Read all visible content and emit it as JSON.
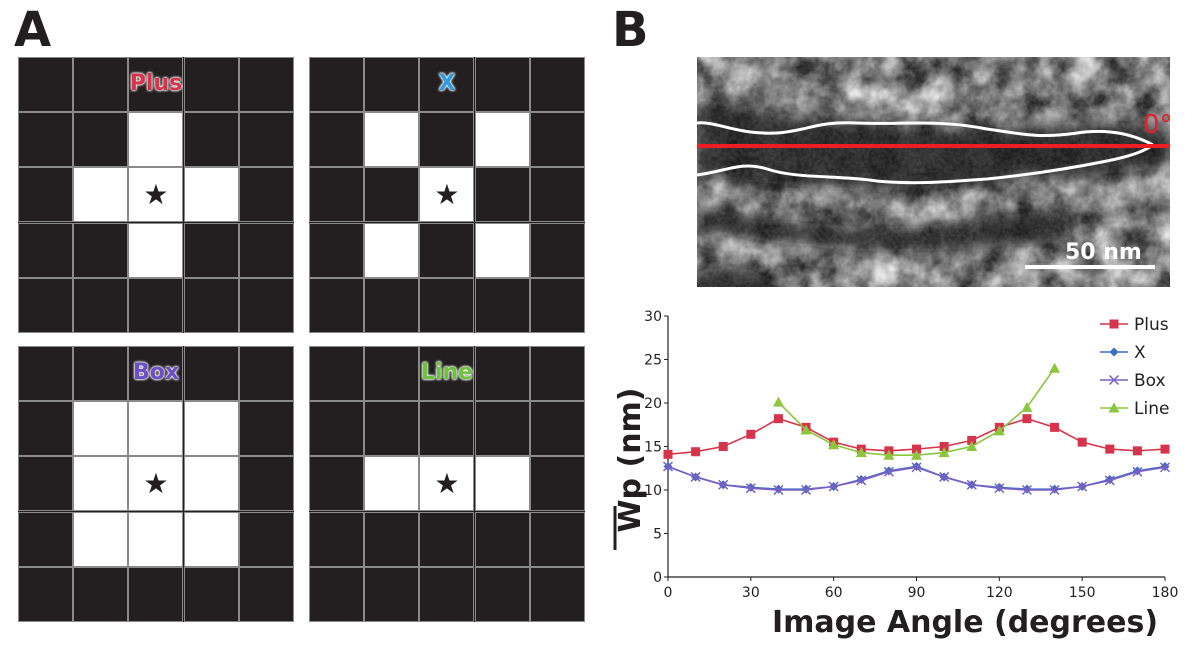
{
  "panels": {
    "a_letter": "A",
    "b_letter": "B"
  },
  "kernels": [
    {
      "label": "Plus",
      "color": "#d6344b",
      "on": [
        [
          1,
          2
        ],
        [
          2,
          1
        ],
        [
          2,
          2
        ],
        [
          2,
          3
        ],
        [
          3,
          2
        ]
      ]
    },
    {
      "label": "X",
      "color": "#2f9be0",
      "on": [
        [
          1,
          1
        ],
        [
          1,
          3
        ],
        [
          2,
          2
        ],
        [
          3,
          1
        ],
        [
          3,
          3
        ]
      ]
    },
    {
      "label": "Box",
      "color": "#6b4fc8",
      "on": [
        [
          1,
          1
        ],
        [
          1,
          2
        ],
        [
          1,
          3
        ],
        [
          2,
          1
        ],
        [
          2,
          2
        ],
        [
          2,
          3
        ],
        [
          3,
          1
        ],
        [
          3,
          2
        ],
        [
          3,
          3
        ]
      ]
    },
    {
      "label": "Line",
      "color": "#6cc43c",
      "on": [
        [
          2,
          1
        ],
        [
          2,
          2
        ],
        [
          2,
          3
        ]
      ]
    }
  ],
  "star_glyph": "★",
  "micrograph": {
    "angle_label": "0°",
    "scale_label": "50 nm"
  },
  "chart_data": {
    "type": "line",
    "xlabel": "Image Angle (degrees)",
    "ylabel": "Wp (nm)",
    "xlim": [
      0,
      180
    ],
    "ylim": [
      0,
      30
    ],
    "xticks": [
      0,
      30,
      60,
      90,
      120,
      150,
      180
    ],
    "yticks": [
      0,
      5,
      10,
      15,
      20,
      25,
      30
    ],
    "grid": false,
    "legend_position": "top-right",
    "series": [
      {
        "name": "Plus",
        "color": "#d6344b",
        "marker": "square",
        "x": [
          0,
          10,
          20,
          30,
          40,
          50,
          60,
          70,
          80,
          90,
          100,
          110,
          120,
          130,
          140,
          150,
          160,
          170,
          180
        ],
        "values": [
          14.1,
          14.4,
          15.0,
          16.4,
          18.2,
          17.2,
          15.5,
          14.7,
          14.5,
          14.7,
          15.0,
          15.7,
          17.2,
          18.2,
          17.2,
          15.5,
          14.7,
          14.5,
          14.7
        ]
      },
      {
        "name": "X",
        "color": "#3f6fc0",
        "marker": "diamond",
        "x": [
          0,
          10,
          20,
          30,
          40,
          50,
          60,
          70,
          80,
          90,
          100,
          110,
          120,
          130,
          140,
          150,
          160,
          170,
          180
        ],
        "values": [
          12.7,
          11.5,
          10.6,
          10.3,
          10.1,
          10.1,
          10.4,
          11.2,
          12.2,
          12.7,
          11.5,
          10.6,
          10.3,
          10.1,
          10.1,
          10.4,
          11.2,
          12.2,
          12.7
        ]
      },
      {
        "name": "Box",
        "color": "#7b5fc4",
        "marker": "x",
        "x": [
          0,
          10,
          20,
          30,
          40,
          50,
          60,
          70,
          80,
          90,
          100,
          110,
          120,
          130,
          140,
          150,
          160,
          170,
          180
        ],
        "values": [
          12.7,
          11.5,
          10.6,
          10.2,
          10.0,
          10.0,
          10.4,
          11.1,
          12.1,
          12.6,
          11.5,
          10.6,
          10.2,
          10.0,
          10.0,
          10.4,
          11.1,
          12.1,
          12.6
        ]
      },
      {
        "name": "Line",
        "color": "#8cc63f",
        "marker": "triangle",
        "x": [
          40,
          50,
          60,
          70,
          80,
          90,
          100,
          110,
          120,
          130,
          140
        ],
        "values": [
          20.1,
          16.9,
          15.2,
          14.3,
          14.0,
          14.0,
          14.3,
          15.0,
          16.8,
          19.5,
          24.0
        ]
      }
    ]
  }
}
